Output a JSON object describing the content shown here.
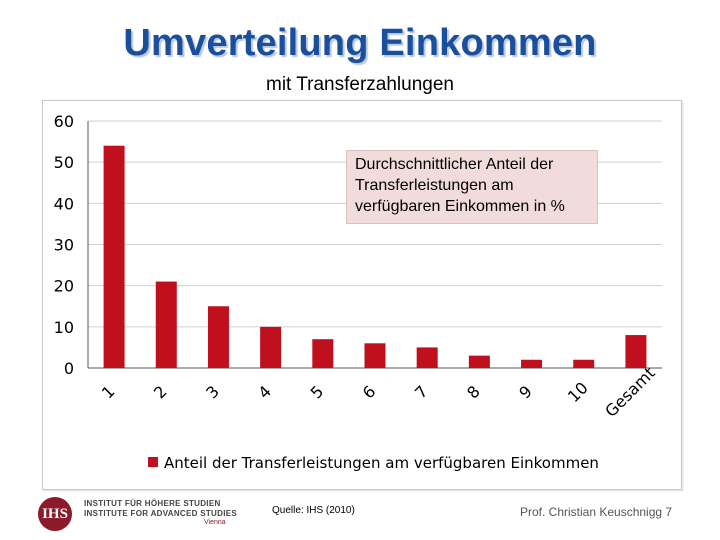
{
  "slide": {
    "title": "Umverteilung Einkommen",
    "subtitle": "mit Transferzahlungen",
    "source": "Quelle: IHS (2010)",
    "author": "Prof. Christian Keuschnigg 7",
    "logo": {
      "letters": "IHS",
      "line1": "INSTITUT FÜR HÖHERE STUDIEN",
      "line2": "INSTITUTE FOR ADVANCED STUDIES",
      "city": "Vienna"
    }
  },
  "annotation": {
    "line1": "Durchschnittlicher Anteil der",
    "line2": "Transferleistungen am",
    "line3": "verfügbaren Einkommen in %"
  },
  "colors": {
    "bar": "#c0101e",
    "grid": "#d0d0d0",
    "axis": "#555555",
    "title": "#1a4f9c"
  },
  "chart_data": {
    "type": "bar",
    "categories": [
      "1",
      "2",
      "3",
      "4",
      "5",
      "6",
      "7",
      "8",
      "9",
      "10",
      "Gesamt"
    ],
    "series": [
      {
        "name": "Anteil der Transferleistungen am verfügbaren Einkommen",
        "values": [
          54,
          21,
          15,
          10,
          7,
          6,
          5,
          3,
          2,
          2,
          8
        ]
      }
    ],
    "ylim": [
      0,
      60
    ],
    "yticks": [
      0,
      10,
      20,
      30,
      40,
      50,
      60
    ],
    "grid": true,
    "legend": "bottom"
  }
}
